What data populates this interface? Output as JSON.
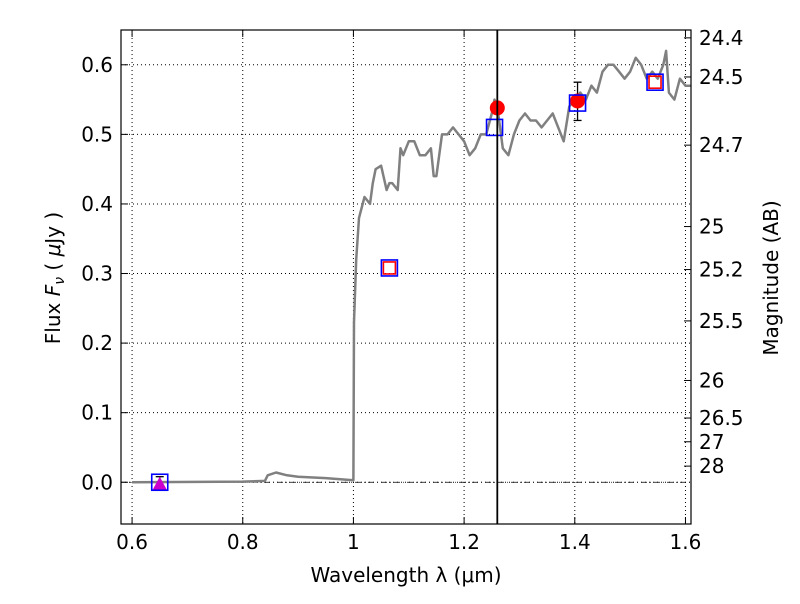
{
  "chart_data": {
    "type": "line",
    "xlabel": "Wavelength  λ (μm)",
    "ylabel": "Flux  F_ν  ( μJy )",
    "ylabel_right": "Magnitude (AB)",
    "xlim": [
      0.58,
      1.61
    ],
    "ylim": [
      -0.06,
      0.65
    ],
    "grid": true,
    "x_ticks": [
      0.6,
      0.8,
      1,
      1.2,
      1.4,
      1.6
    ],
    "x_tick_labels": [
      "0.6",
      "0.8",
      "1",
      "1.2",
      "1.4",
      "1.6"
    ],
    "y_ticks": [
      0.0,
      0.1,
      0.2,
      0.3,
      0.4,
      0.5,
      0.6
    ],
    "y_tick_labels": [
      "0.0",
      "0.1",
      "0.2",
      "0.3",
      "0.4",
      "0.5",
      "0.6"
    ],
    "right_ticks": [
      {
        "label": "24.4",
        "flux": 0.6387
      },
      {
        "label": "24.5",
        "flux": 0.5825
      },
      {
        "label": "24.7",
        "flux": 0.4845
      },
      {
        "label": "25",
        "flux": 0.3675
      },
      {
        "label": "25.2",
        "flux": 0.3057
      },
      {
        "label": "25.5",
        "flux": 0.2319
      },
      {
        "label": "26",
        "flux": 0.1463
      },
      {
        "label": "26.5",
        "flux": 0.0923
      },
      {
        "label": "27",
        "flux": 0.0582
      },
      {
        "label": "28",
        "flux": 0.0232
      }
    ],
    "vertical_line_x": 1.26,
    "series": [
      {
        "kind": "spectrum-line",
        "color": "#808080",
        "x": [
          0.6,
          0.8,
          0.84,
          0.845,
          0.86,
          0.88,
          0.9,
          0.95,
          1.0,
          1.001,
          1.005,
          1.01,
          1.02,
          1.03,
          1.035,
          1.04,
          1.05,
          1.06,
          1.065,
          1.07,
          1.08,
          1.085,
          1.09,
          1.1,
          1.11,
          1.12,
          1.13,
          1.14,
          1.145,
          1.15,
          1.16,
          1.17,
          1.18,
          1.19,
          1.2,
          1.21,
          1.22,
          1.23,
          1.24,
          1.25,
          1.255,
          1.26,
          1.27,
          1.28,
          1.29,
          1.3,
          1.31,
          1.32,
          1.33,
          1.34,
          1.35,
          1.36,
          1.37,
          1.38,
          1.39,
          1.4,
          1.41,
          1.42,
          1.43,
          1.44,
          1.45,
          1.46,
          1.47,
          1.48,
          1.49,
          1.5,
          1.51,
          1.52,
          1.53,
          1.54,
          1.55,
          1.56,
          1.565,
          1.57,
          1.58,
          1.59,
          1.6,
          1.61
        ],
        "y": [
          0.0,
          0.001,
          0.002,
          0.01,
          0.014,
          0.01,
          0.008,
          0.006,
          0.003,
          0.23,
          0.32,
          0.38,
          0.41,
          0.4,
          0.43,
          0.45,
          0.455,
          0.42,
          0.43,
          0.43,
          0.42,
          0.48,
          0.47,
          0.49,
          0.49,
          0.47,
          0.47,
          0.48,
          0.44,
          0.44,
          0.5,
          0.5,
          0.51,
          0.5,
          0.49,
          0.47,
          0.48,
          0.5,
          0.5,
          0.53,
          0.55,
          0.54,
          0.48,
          0.47,
          0.5,
          0.52,
          0.53,
          0.52,
          0.52,
          0.51,
          0.52,
          0.53,
          0.51,
          0.49,
          0.54,
          0.55,
          0.56,
          0.55,
          0.57,
          0.56,
          0.59,
          0.6,
          0.6,
          0.59,
          0.58,
          0.59,
          0.61,
          0.6,
          0.58,
          0.59,
          0.58,
          0.6,
          0.62,
          0.56,
          0.55,
          0.58,
          0.57,
          0.57
        ]
      },
      {
        "kind": "open-square",
        "color": "#0000ff",
        "x": [
          0.65,
          1.065,
          1.255,
          1.405,
          1.545
        ],
        "y": [
          0.0,
          0.308,
          0.51,
          0.545,
          0.575
        ]
      },
      {
        "kind": "open-square",
        "color": "#ff0000",
        "x": [
          1.065,
          1.545
        ],
        "y": [
          0.308,
          0.575
        ]
      },
      {
        "kind": "filled-circle",
        "color": "#ff0000",
        "x": [
          1.26,
          1.405
        ],
        "y": [
          0.538,
          0.548
        ]
      },
      {
        "kind": "filled-triangle",
        "color": "#cc00cc",
        "x": [
          0.65
        ],
        "y": [
          -0.002
        ]
      }
    ],
    "error_bars": [
      {
        "x": 1.405,
        "y": 0.548,
        "ylow": 0.52,
        "yhigh": 0.575
      },
      {
        "x": 0.65,
        "y": 0.0,
        "ylow": -0.008,
        "yhigh": 0.008
      }
    ]
  }
}
